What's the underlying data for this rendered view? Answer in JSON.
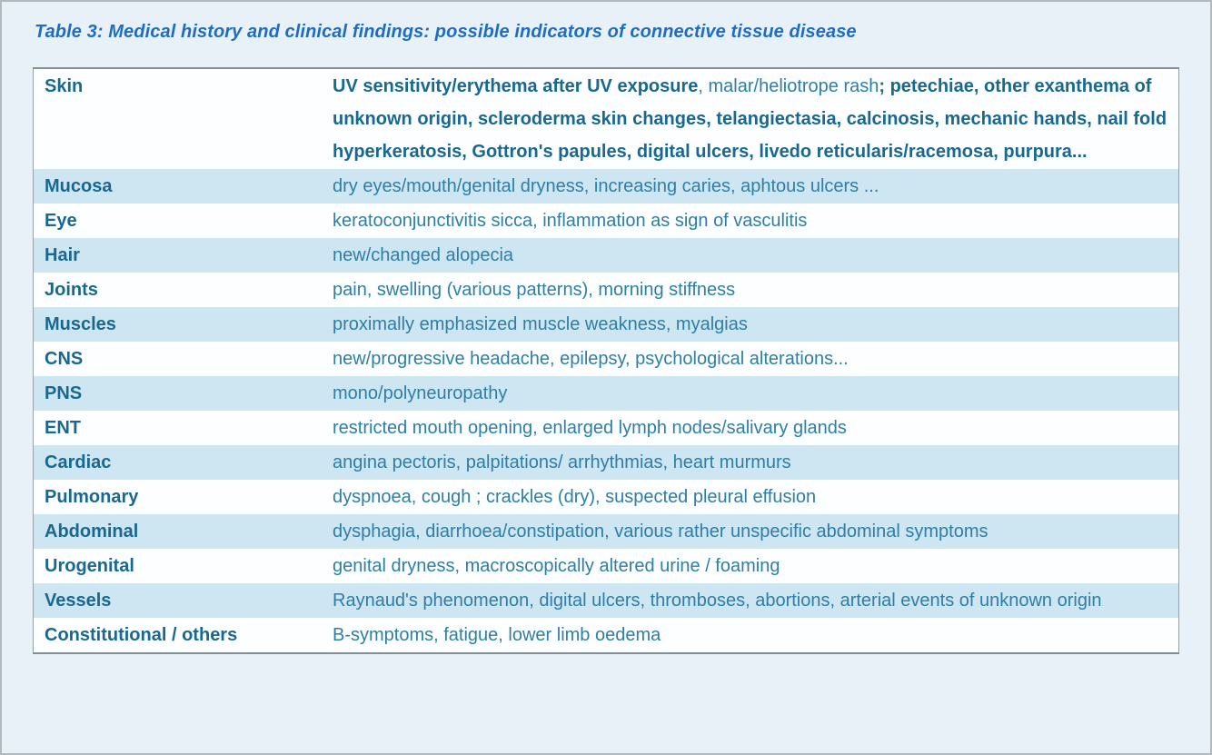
{
  "caption": "Table 3: Medical history and clinical findings: possible indicators of connective tissue disease",
  "colors": {
    "caption_color": "#1f6dc1",
    "label_color": "#19688f",
    "text_color": "#2e7ea6",
    "alt_row_bg": "#cee5f2",
    "row_bg": "#fdfeff",
    "page_bg": "#e8f1f8"
  },
  "table": {
    "rows": [
      {
        "label": "Skin",
        "segments": [
          {
            "text": "UV sensitivity/erythema after UV exposure",
            "bold": true
          },
          {
            "text": ", malar/heliotrope rash",
            "bold": false
          },
          {
            "text": "; petechiae, other exanthema of unknown origin, scleroderma skin changes, telangiectasia, calcinosis, mechanic hands, nail fold hyperkeratosis, Gottron's papules, digital ulcers, livedo reticularis/racemosa, purpura...",
            "bold": true
          }
        ]
      },
      {
        "label": "Mucosa",
        "text": "dry eyes/mouth/genital dryness, increasing caries, aphtous ulcers ..."
      },
      {
        "label": "Eye",
        "text": "keratoconjunctivitis sicca, inflammation as sign of vasculitis"
      },
      {
        "label": "Hair",
        "text": "new/changed alopecia"
      },
      {
        "label": "Joints",
        "text": "pain, swelling (various patterns), morning stiffness"
      },
      {
        "label": "Muscles",
        "text": "proximally emphasized muscle weakness, myalgias"
      },
      {
        "label": "CNS",
        "text": "new/progressive headache, epilepsy, psychological alterations..."
      },
      {
        "label": "PNS",
        "text": "mono/polyneuropathy"
      },
      {
        "label": "ENT",
        "text": "restricted mouth opening, enlarged lymph nodes/salivary glands"
      },
      {
        "label": "Cardiac",
        "text": "angina pectoris, palpitations/ arrhythmias, heart murmurs"
      },
      {
        "label": "Pulmonary",
        "text": "dyspnoea, cough ; crackles (dry), suspected pleural effusion"
      },
      {
        "label": "Abdominal",
        "text": "dysphagia, diarrhoea/constipation, various rather unspecific abdominal symptoms"
      },
      {
        "label": "Urogenital",
        "text": "genital dryness, macroscopically altered urine / foaming"
      },
      {
        "label": "Vessels",
        "text": "Raynaud's phenomenon, digital ulcers, thromboses, abortions, arterial events of unknown origin"
      },
      {
        "label": "Constitutional / others",
        "text": "B-symptoms, fatigue, lower limb oedema"
      }
    ]
  }
}
